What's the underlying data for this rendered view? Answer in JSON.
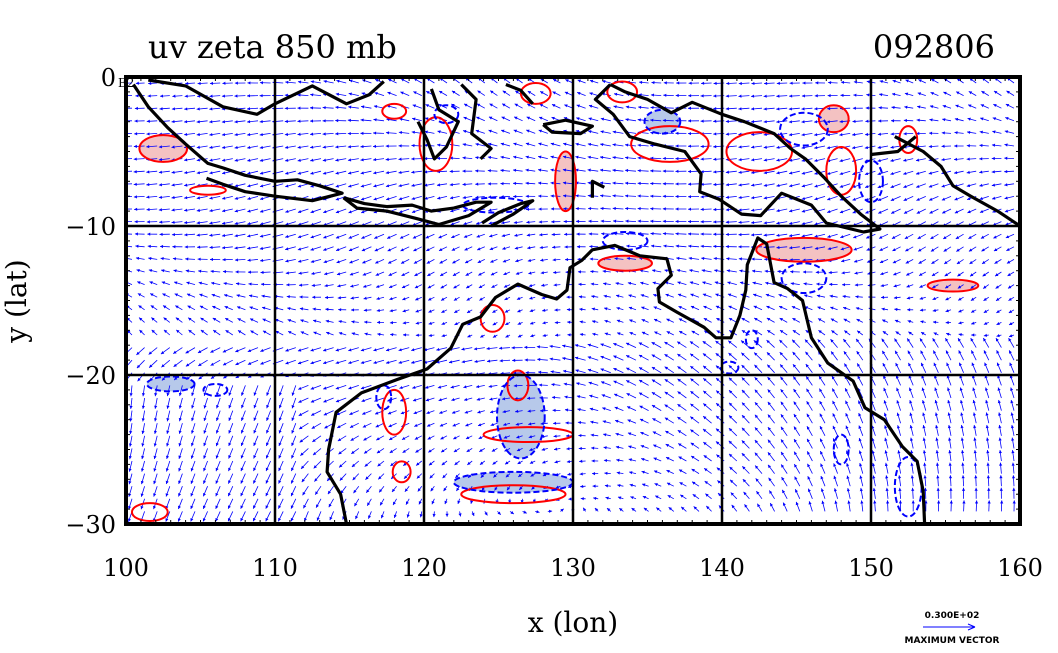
{
  "title": "uv zeta 850 mb",
  "datestamp": "092806",
  "corner_label": "E2",
  "xlabel": "x (lon)",
  "ylabel": "y (lat)",
  "legend": {
    "reference_value": "0.300E+02",
    "reference_label": "MAXIMUM VECTOR"
  },
  "colors": {
    "coast": "#000000",
    "vector": "#0000ff",
    "positive_zeta": "#ff0000",
    "positive_fill": "#f4c2c2",
    "negative_zeta": "#0000ff",
    "negative_fill": "#b7c9ea"
  },
  "chart_data": {
    "type": "vector-field-map",
    "xlim": [
      100,
      160
    ],
    "ylim": [
      -30,
      0
    ],
    "xticks": [
      100,
      110,
      120,
      130,
      140,
      150,
      160
    ],
    "yticks": [
      0,
      -10,
      -20,
      -30
    ],
    "xtick_labels": [
      "100",
      "110",
      "120",
      "130",
      "140",
      "150",
      "160"
    ],
    "ytick_labels": [
      "0",
      "−10",
      "−20",
      "−30"
    ],
    "grid": true,
    "coastlines": [
      [
        [
          100.5,
          -0.5
        ],
        [
          101.5,
          -2
        ],
        [
          102.8,
          -3.4
        ],
        [
          104,
          -4.5
        ],
        [
          105.5,
          -5.8
        ],
        [
          106.5,
          -6.1
        ],
        [
          108,
          -6.6
        ],
        [
          110,
          -7
        ],
        [
          111.5,
          -6.9
        ],
        [
          113,
          -7.3
        ],
        [
          114.5,
          -7.8
        ],
        [
          112.5,
          -8.3
        ],
        [
          110,
          -8
        ],
        [
          108,
          -7.7
        ],
        [
          106.5,
          -7.2
        ],
        [
          105.4,
          -6.8
        ]
      ],
      [
        [
          114.6,
          -8.1
        ],
        [
          116,
          -8.5
        ],
        [
          117.5,
          -8.7
        ],
        [
          119.2,
          -8.6
        ],
        [
          120.5,
          -9
        ],
        [
          122,
          -8.8
        ],
        [
          123.5,
          -8.4
        ],
        [
          124.5,
          -8.4
        ],
        [
          123,
          -9.3
        ],
        [
          121,
          -9.9
        ],
        [
          119.5,
          -9.5
        ],
        [
          117.5,
          -9
        ],
        [
          115.5,
          -8.8
        ],
        [
          114.6,
          -8.1
        ]
      ],
      [
        [
          120.5,
          -0.8
        ],
        [
          121,
          -2.2
        ],
        [
          122.3,
          -3
        ],
        [
          121.5,
          -4.7
        ],
        [
          120.7,
          -5.5
        ],
        [
          120.2,
          -4.2
        ],
        [
          119.6,
          -3
        ]
      ],
      [
        [
          122.5,
          -0.5
        ],
        [
          123.5,
          -1.5
        ],
        [
          123.2,
          -3.8
        ],
        [
          124.5,
          -4.8
        ],
        [
          123.8,
          -5.5
        ]
      ],
      [
        [
          123.9,
          -9.8
        ],
        [
          125,
          -9.1
        ],
        [
          126.5,
          -8.5
        ],
        [
          127.3,
          -8.3
        ],
        [
          126,
          -9.2
        ],
        [
          124.5,
          -10
        ]
      ],
      [
        [
          101.5,
          -0.2
        ],
        [
          104,
          -0.6
        ],
        [
          106.5,
          -2
        ],
        [
          108.8,
          -2.5
        ],
        [
          110,
          -1.8
        ],
        [
          112.5,
          -0.6
        ],
        [
          114.8,
          -1.8
        ],
        [
          116.3,
          -1.2
        ],
        [
          117.3,
          -0.3
        ]
      ],
      [
        [
          125.5,
          -0.5
        ],
        [
          126.5,
          -0.9
        ],
        [
          127.3,
          -1.8
        ]
      ],
      [
        [
          128,
          -3.2
        ],
        [
          129.5,
          -2.9
        ],
        [
          131.3,
          -3.3
        ],
        [
          130.5,
          -3.8
        ],
        [
          128.6,
          -3.7
        ],
        [
          128,
          -3.2
        ]
      ],
      [
        [
          132.5,
          -0.5
        ],
        [
          133.5,
          -1
        ],
        [
          135,
          -1.5
        ],
        [
          136.6,
          -2.4
        ],
        [
          138,
          -1.7
        ],
        [
          140,
          -2.5
        ],
        [
          141.5,
          -3
        ],
        [
          143.5,
          -3.8
        ],
        [
          144.6,
          -4.8
        ],
        [
          145.6,
          -5.5
        ],
        [
          146.9,
          -6.8
        ],
        [
          148,
          -8
        ],
        [
          149.3,
          -9.2
        ],
        [
          150.6,
          -10.2
        ],
        [
          149.5,
          -10.4
        ],
        [
          147,
          -9.8
        ],
        [
          146,
          -8.6
        ],
        [
          144,
          -7.8
        ],
        [
          142.6,
          -9.3
        ],
        [
          141.3,
          -9.2
        ],
        [
          139.8,
          -8.2
        ],
        [
          138.5,
          -7.7
        ],
        [
          138.6,
          -6.5
        ],
        [
          137.5,
          -5
        ],
        [
          135.5,
          -4.5
        ],
        [
          133.8,
          -4
        ],
        [
          132.7,
          -2.5
        ],
        [
          131.5,
          -1.5
        ],
        [
          132.5,
          -0.5
        ]
      ],
      [
        [
          132.1,
          -7.4
        ],
        [
          131.3,
          -7
        ],
        [
          131.3,
          -8.1
        ]
      ],
      [
        [
          151.6,
          -4
        ],
        [
          153.5,
          -5
        ],
        [
          154.7,
          -6
        ],
        [
          155.5,
          -7.3
        ],
        [
          156.7,
          -8
        ],
        [
          158.5,
          -9
        ],
        [
          160,
          -10
        ]
      ],
      [
        [
          150,
          -5.2
        ],
        [
          151.8,
          -5
        ],
        [
          153,
          -4
        ]
      ],
      [
        [
          114.8,
          -30
        ],
        [
          114.4,
          -28
        ],
        [
          113.5,
          -26.5
        ],
        [
          113.6,
          -25
        ],
        [
          114.1,
          -22.5
        ],
        [
          115.8,
          -21.2
        ],
        [
          118.2,
          -20.3
        ],
        [
          120.2,
          -19.6
        ],
        [
          121.8,
          -18.2
        ],
        [
          122.6,
          -16.6
        ],
        [
          123.8,
          -16.1
        ],
        [
          124.8,
          -14.8
        ],
        [
          126.3,
          -13.9
        ],
        [
          127.9,
          -14.6
        ],
        [
          128.9,
          -14.9
        ],
        [
          129.6,
          -14.3
        ],
        [
          129.8,
          -12.8
        ],
        [
          130.6,
          -12.3
        ],
        [
          131.3,
          -11.6
        ],
        [
          132.8,
          -11.3
        ],
        [
          134.5,
          -12
        ],
        [
          136.3,
          -12.2
        ],
        [
          136.6,
          -13.3
        ],
        [
          135.7,
          -14.2
        ],
        [
          135.8,
          -15.1
        ],
        [
          137,
          -15.8
        ],
        [
          138.8,
          -16.8
        ],
        [
          139.6,
          -17.5
        ],
        [
          140.6,
          -17.5
        ],
        [
          141.2,
          -16
        ],
        [
          141.6,
          -14.3
        ],
        [
          141.7,
          -12.6
        ],
        [
          142.4,
          -10.8
        ],
        [
          143,
          -11.2
        ],
        [
          143.5,
          -13.8
        ],
        [
          144.4,
          -14.2
        ],
        [
          145.4,
          -15
        ],
        [
          146,
          -17.5
        ],
        [
          147.1,
          -19.2
        ],
        [
          148.8,
          -20.4
        ],
        [
          149.6,
          -22.2
        ],
        [
          150.9,
          -23
        ],
        [
          152.1,
          -24.8
        ],
        [
          153.1,
          -25.8
        ],
        [
          153.5,
          -27.8
        ],
        [
          153.6,
          -30
        ]
      ]
    ],
    "positive_contours": [
      {
        "cx": 102.5,
        "cy": -4.8,
        "rx": 1.6,
        "ry": 0.9,
        "filled": true
      },
      {
        "cx": 129.5,
        "cy": -7.0,
        "rx": 0.7,
        "ry": 2.0,
        "filled": true
      },
      {
        "cx": 133.5,
        "cy": -12.5,
        "rx": 1.8,
        "ry": 0.5,
        "filled": true
      },
      {
        "cx": 145.5,
        "cy": -11.6,
        "rx": 3.2,
        "ry": 0.8,
        "filled": true
      },
      {
        "cx": 155.5,
        "cy": -14.0,
        "rx": 1.7,
        "ry": 0.4,
        "filled": true
      },
      {
        "cx": 147.5,
        "cy": -2.8,
        "rx": 1.0,
        "ry": 0.9,
        "filled": true
      },
      {
        "cx": 126.3,
        "cy": -20.7,
        "rx": 0.7,
        "ry": 1.0,
        "filled": true
      },
      {
        "cx": 136.5,
        "cy": -4.5,
        "rx": 2.6,
        "ry": 1.2,
        "filled": false
      },
      {
        "cx": 142.5,
        "cy": -5.0,
        "rx": 2.2,
        "ry": 1.3,
        "filled": false
      },
      {
        "cx": 148.0,
        "cy": -6.3,
        "rx": 1.0,
        "ry": 1.6,
        "filled": false
      },
      {
        "cx": 120.8,
        "cy": -4.5,
        "rx": 1.1,
        "ry": 1.8,
        "filled": false
      },
      {
        "cx": 127.0,
        "cy": -24.0,
        "rx": 3.0,
        "ry": 0.5,
        "filled": false
      },
      {
        "cx": 126.0,
        "cy": -28.0,
        "rx": 3.5,
        "ry": 0.6,
        "filled": false
      },
      {
        "cx": 118.0,
        "cy": -22.5,
        "rx": 0.8,
        "ry": 1.5,
        "filled": false
      },
      {
        "cx": 101.6,
        "cy": -29.2,
        "rx": 1.2,
        "ry": 0.6,
        "filled": false
      },
      {
        "cx": 105.5,
        "cy": -7.6,
        "rx": 1.2,
        "ry": 0.3,
        "filled": false
      },
      {
        "cx": 124.6,
        "cy": -16.2,
        "rx": 0.8,
        "ry": 0.9,
        "filled": false
      },
      {
        "cx": 118.0,
        "cy": -2.3,
        "rx": 0.8,
        "ry": 0.5,
        "filled": false
      },
      {
        "cx": 152.5,
        "cy": -4.2,
        "rx": 0.6,
        "ry": 0.9,
        "filled": false
      },
      {
        "cx": 118.5,
        "cy": -26.5,
        "rx": 0.6,
        "ry": 0.7,
        "filled": false
      },
      {
        "cx": 127.5,
        "cy": -1.1,
        "rx": 1.0,
        "ry": 0.7,
        "filled": false
      },
      {
        "cx": 133.3,
        "cy": -1.0,
        "rx": 1.0,
        "ry": 0.7,
        "filled": false
      }
    ],
    "negative_contours": [
      {
        "cx": 126.5,
        "cy": -22.8,
        "rx": 1.6,
        "ry": 2.8,
        "filled": true
      },
      {
        "cx": 126.0,
        "cy": -27.2,
        "rx": 4.0,
        "ry": 0.7,
        "filled": true
      },
      {
        "cx": 103.0,
        "cy": -20.6,
        "rx": 1.6,
        "ry": 0.5,
        "filled": true
      },
      {
        "cx": 136.0,
        "cy": -3.0,
        "rx": 1.2,
        "ry": 0.8,
        "filled": true
      },
      {
        "cx": 145.5,
        "cy": -3.5,
        "rx": 1.6,
        "ry": 1.1,
        "filled": false
      },
      {
        "cx": 152.5,
        "cy": -27.5,
        "rx": 0.9,
        "ry": 2.0,
        "filled": false
      },
      {
        "cx": 117.3,
        "cy": -21.5,
        "rx": 0.5,
        "ry": 0.8,
        "filled": false
      },
      {
        "cx": 133.5,
        "cy": -11.0,
        "rx": 1.5,
        "ry": 0.6,
        "filled": false
      },
      {
        "cx": 145.5,
        "cy": -13.5,
        "rx": 1.5,
        "ry": 1.0,
        "filled": false
      },
      {
        "cx": 142.0,
        "cy": -17.6,
        "rx": 0.4,
        "ry": 0.6,
        "filled": false
      },
      {
        "cx": 124.8,
        "cy": -8.6,
        "rx": 2.2,
        "ry": 0.5,
        "filled": false
      },
      {
        "cx": 106.0,
        "cy": -21.0,
        "rx": 0.8,
        "ry": 0.4,
        "filled": false
      },
      {
        "cx": 150.0,
        "cy": -7.0,
        "rx": 0.8,
        "ry": 1.4,
        "filled": false
      },
      {
        "cx": 121.5,
        "cy": -2.5,
        "rx": 0.8,
        "ry": 0.6,
        "filled": false
      },
      {
        "cx": 140.5,
        "cy": -19.5,
        "rx": 0.6,
        "ry": 0.4,
        "filled": false
      },
      {
        "cx": 148.0,
        "cy": -25.0,
        "rx": 0.5,
        "ry": 1.0,
        "filled": false
      }
    ]
  }
}
